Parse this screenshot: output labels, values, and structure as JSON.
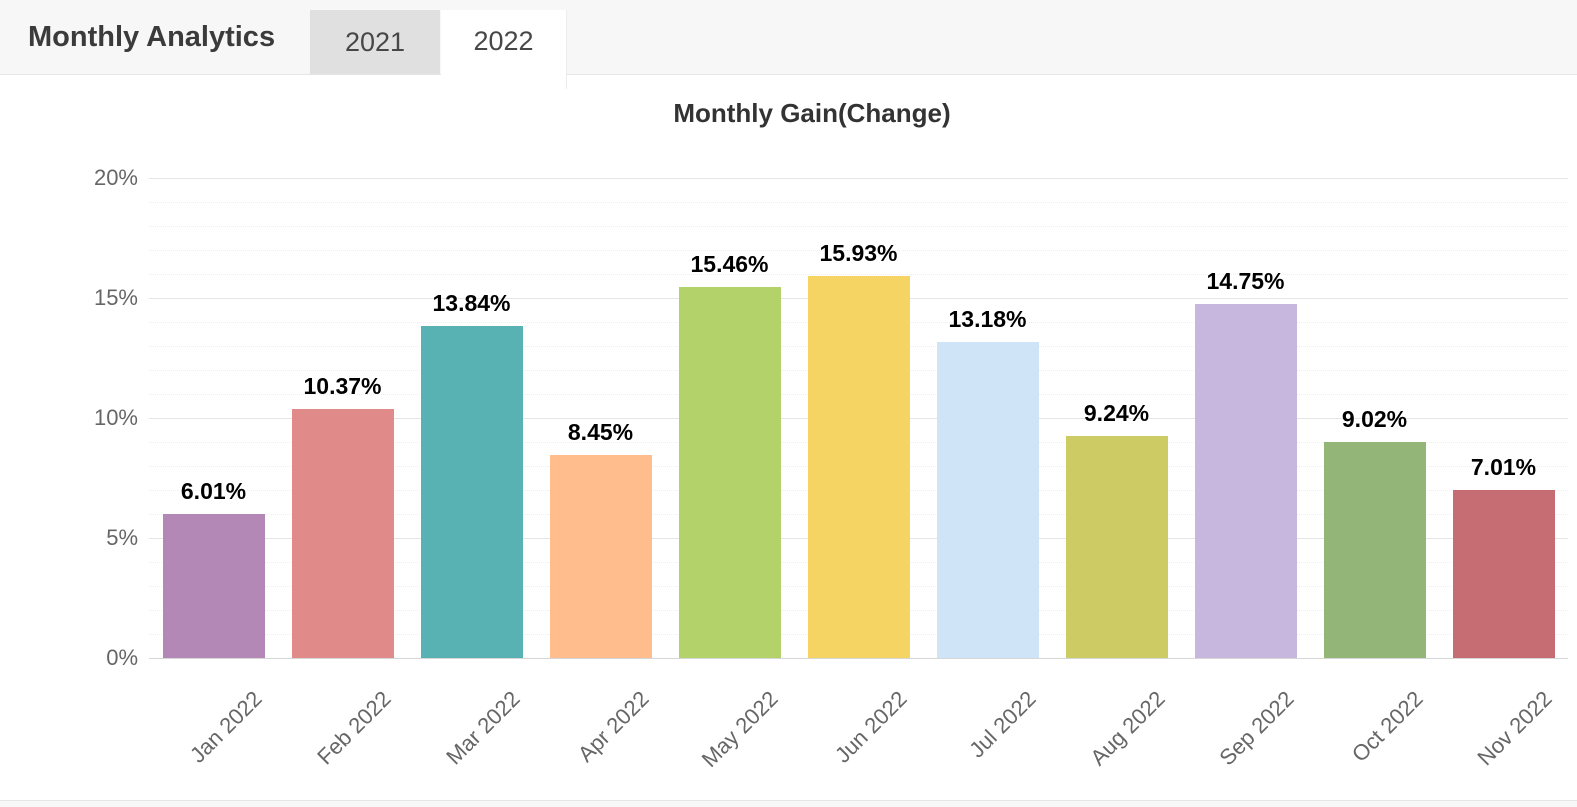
{
  "header": {
    "title": "Monthly Analytics",
    "tabs": [
      {
        "label": "2021",
        "active": false
      },
      {
        "label": "2022",
        "active": true
      }
    ]
  },
  "chart_data": {
    "type": "bar",
    "title": "Monthly Gain(Change)",
    "xlabel": "",
    "ylabel": "",
    "categories": [
      "Jan 2022",
      "Feb 2022",
      "Mar 2022",
      "Apr 2022",
      "May 2022",
      "Jun 2022",
      "Jul 2022",
      "Aug 2022",
      "Sep 2022",
      "Oct 2022",
      "Nov 2022"
    ],
    "values": [
      6.01,
      10.37,
      13.84,
      8.45,
      15.46,
      15.93,
      13.18,
      9.24,
      14.75,
      9.02,
      7.01
    ],
    "data_labels": [
      "6.01%",
      "10.37%",
      "13.84%",
      "8.45%",
      "15.46%",
      "15.93%",
      "13.18%",
      "9.24%",
      "14.75%",
      "9.02%",
      "7.01%"
    ],
    "bar_colors": [
      "#b388b6",
      "#e08a8a",
      "#58b2b4",
      "#ffbd8e",
      "#b3d36a",
      "#f5d464",
      "#cfe4f7",
      "#cdcb63",
      "#c7b6de",
      "#94b578",
      "#c66d74"
    ],
    "ylim": [
      0,
      20
    ],
    "yticks": [
      {
        "value": 0,
        "label": "0%"
      },
      {
        "value": 5,
        "label": "5%"
      },
      {
        "value": 10,
        "label": "10%"
      },
      {
        "value": 15,
        "label": "15%"
      },
      {
        "value": 20,
        "label": "20%"
      }
    ],
    "y_minor_step": 1,
    "grid": true,
    "minor_grid": true,
    "legend": "none",
    "x_label_rotation": -45
  },
  "colors": {
    "header_bg": "#f7f7f7",
    "header_border": "#e5e5e5",
    "tab_inactive_bg": "#e0e0e0",
    "tab_active_bg": "#ffffff",
    "chart_title": "#333333",
    "axis_label": "#666666",
    "data_label": "#000000",
    "grid_major": "#e5e5e5",
    "grid_minor": "#eeeeee",
    "axis_line": "#d6d6d6"
  }
}
